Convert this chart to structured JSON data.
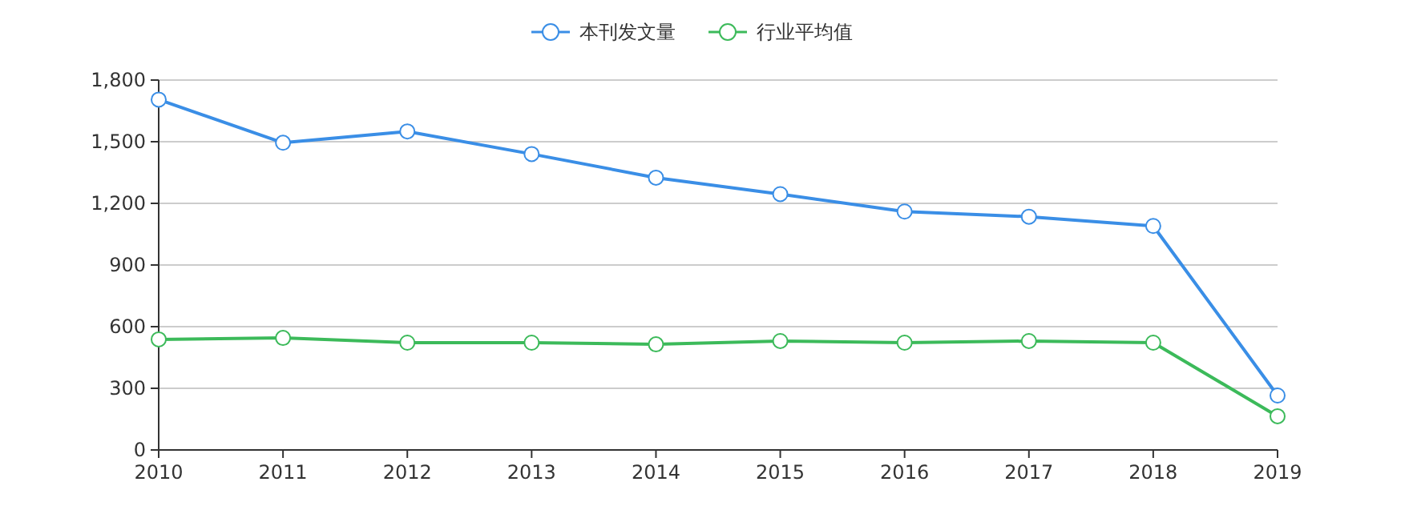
{
  "chart_data": {
    "type": "line",
    "x": [
      2010,
      2011,
      2012,
      2013,
      2014,
      2015,
      2016,
      2017,
      2018,
      2019
    ],
    "xlim": [
      2010,
      2019
    ],
    "xticks": [
      2010,
      2011,
      2012,
      2013,
      2014,
      2015,
      2016,
      2017,
      2018,
      2019
    ],
    "ylim": [
      0,
      1800
    ],
    "yticks": [
      0,
      {
        "value": 300,
        "label": "300"
      },
      {
        "value": 600,
        "label": "600"
      },
      {
        "value": 900,
        "label": "900"
      },
      {
        "value": 1200,
        "label": "1,200"
      },
      {
        "value": 1500,
        "label": "1,500"
      },
      {
        "value": 1800,
        "label": "1,800"
      }
    ],
    "grid": "y",
    "legend": "top",
    "marker": "circle",
    "line_style": "solid",
    "series": [
      {
        "name": "本刊发文量",
        "color": "#3a8ee6",
        "values": [
          1705,
          1495,
          1550,
          1440,
          1325,
          1245,
          1160,
          1135,
          1090,
          265
        ]
      },
      {
        "name": "行业平均值",
        "color": "#3cba5a",
        "values": [
          538,
          545,
          522,
          522,
          514,
          530,
          522,
          530,
          522,
          164
        ]
      }
    ]
  }
}
